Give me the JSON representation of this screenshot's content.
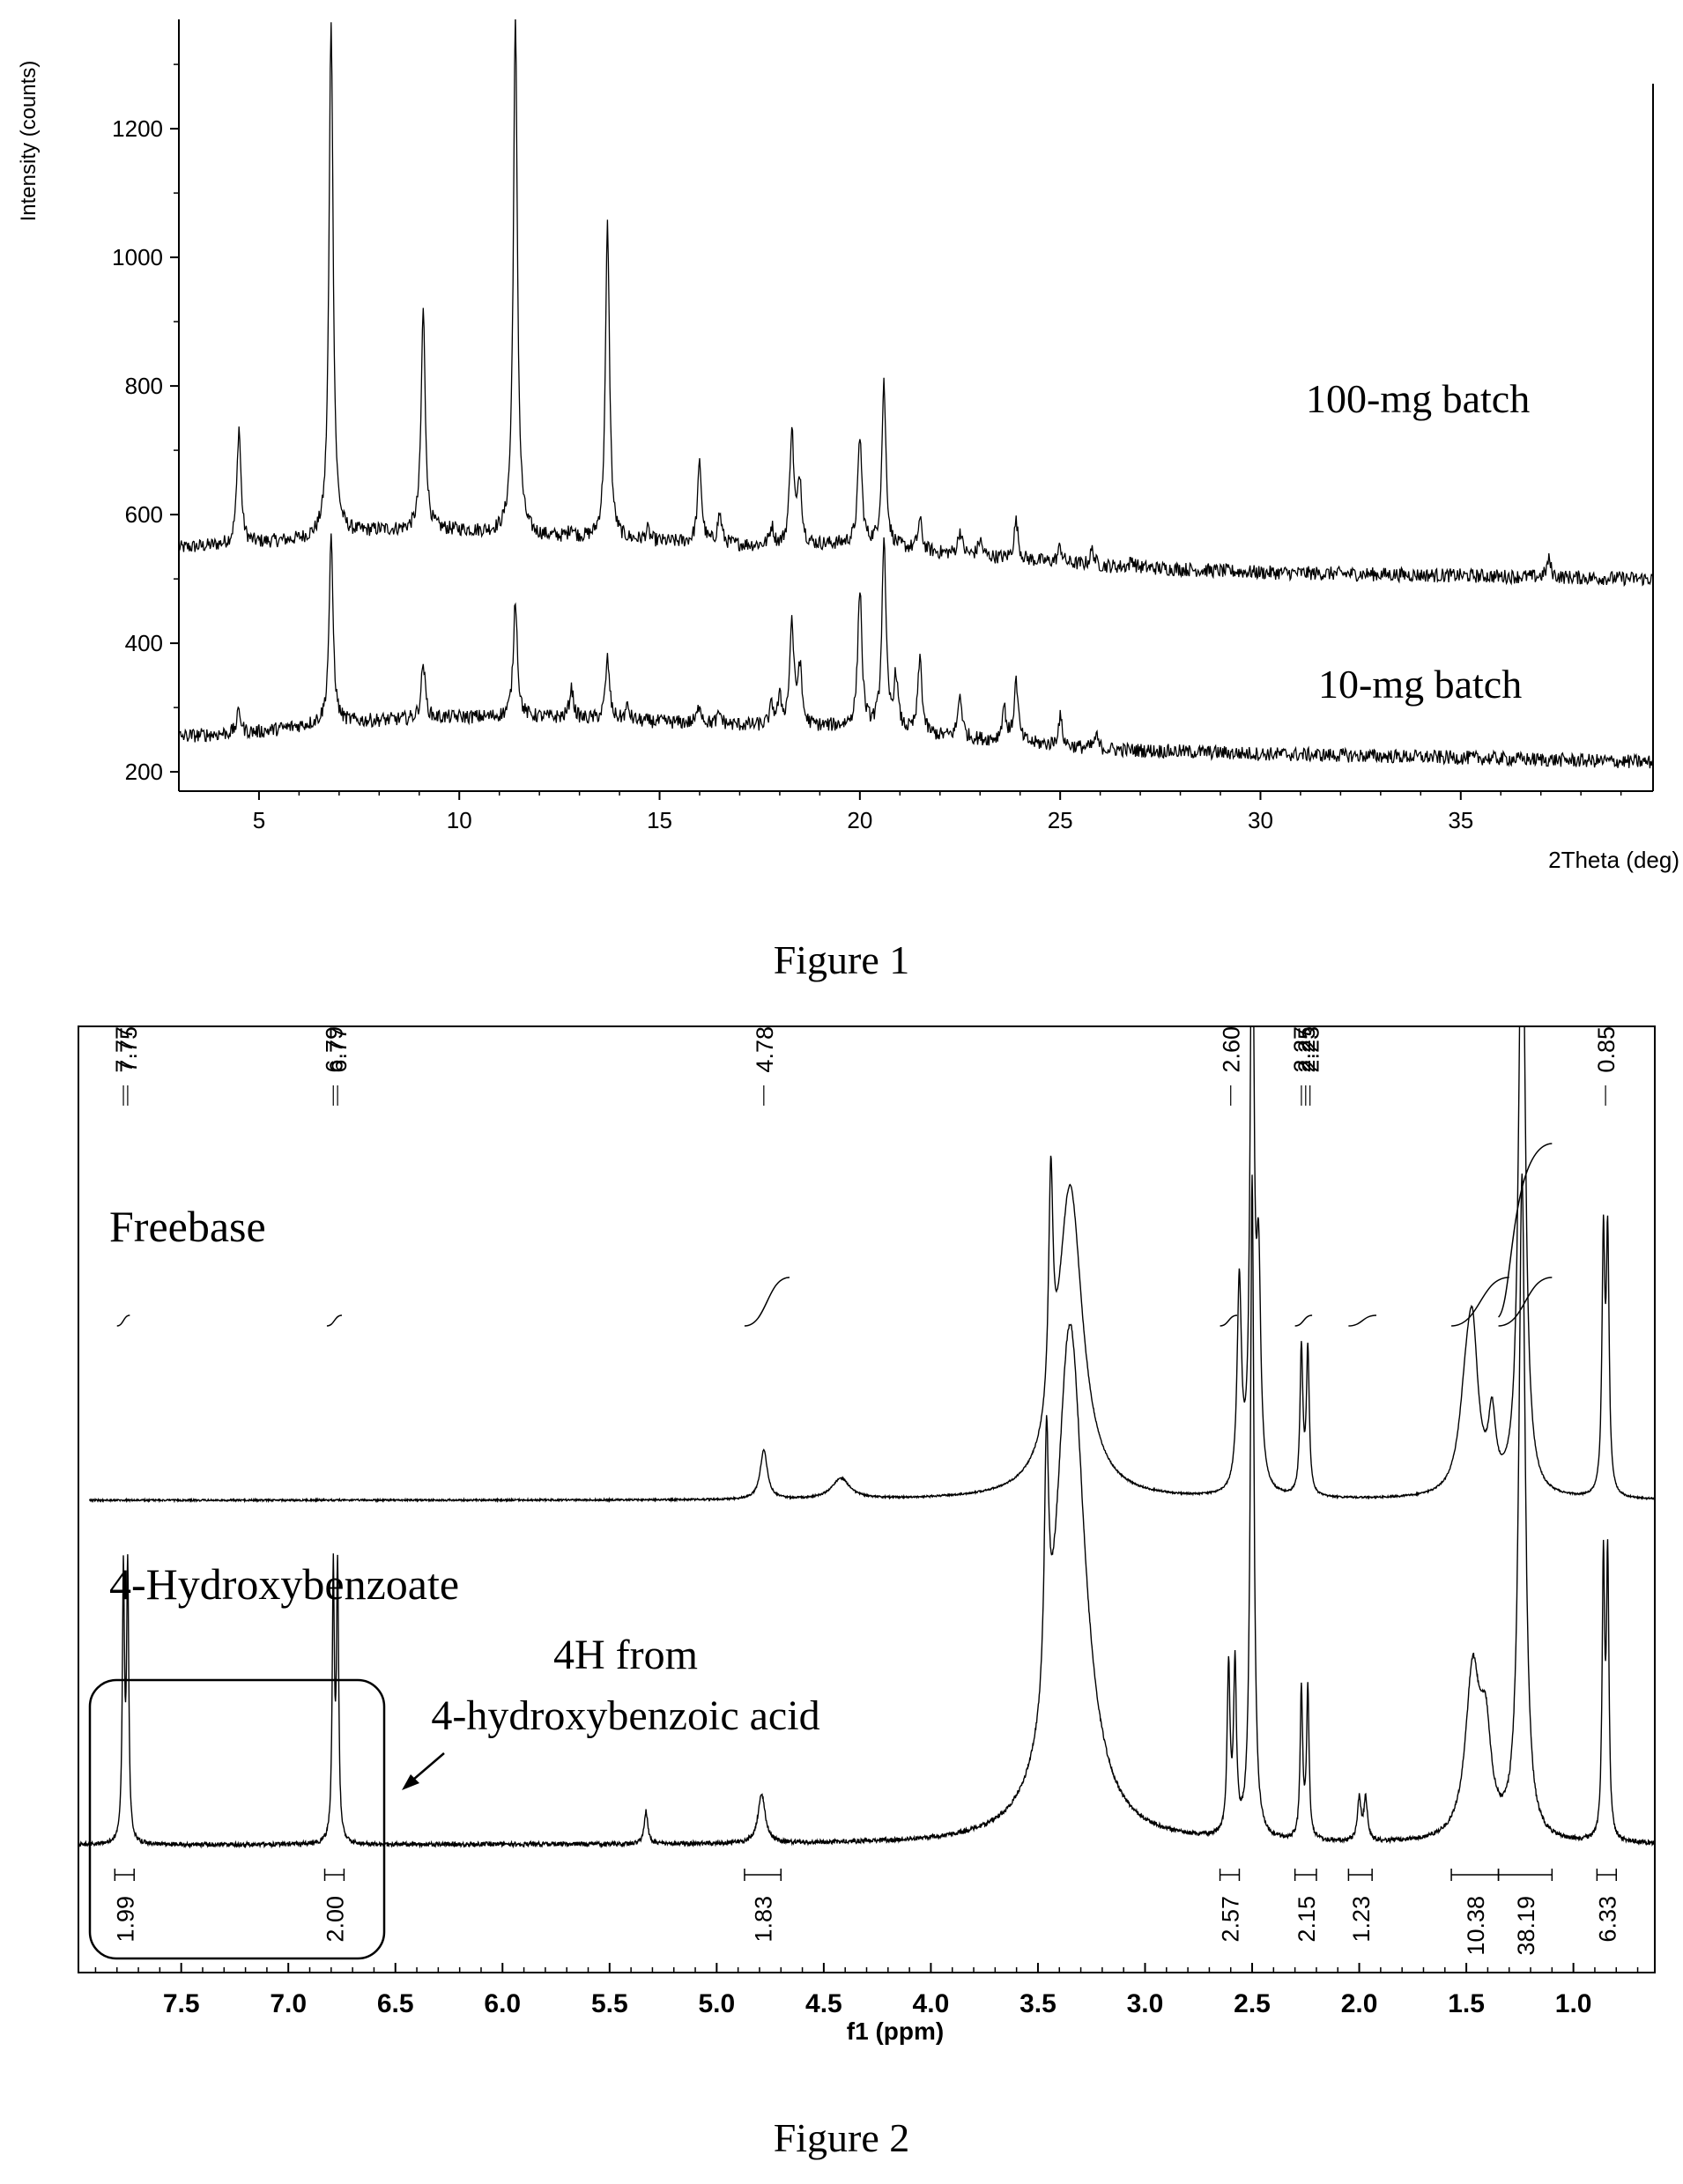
{
  "figures": [
    {
      "caption": "Figure 1"
    },
    {
      "caption": "Figure 2"
    }
  ],
  "chart_data": [
    {
      "type": "line",
      "title": "",
      "xlabel": "2Theta (deg)",
      "ylabel": "Intensity (counts)",
      "xlim": [
        3,
        39.8
      ],
      "ylim": [
        170,
        1370
      ],
      "xticks": [
        5,
        10,
        15,
        20,
        25,
        30,
        35
      ],
      "yticks": [
        200,
        400,
        600,
        800,
        1000,
        1200
      ],
      "grid": false,
      "series": [
        {
          "name": "100-mg batch",
          "baseline": [
            [
              3,
              548
            ],
            [
              6,
              560
            ],
            [
              8,
              575
            ],
            [
              10,
              575
            ],
            [
              12,
              565
            ],
            [
              14,
              560
            ],
            [
              16,
              555
            ],
            [
              18,
              550
            ],
            [
              20,
              555
            ],
            [
              22,
              540
            ],
            [
              24,
              530
            ],
            [
              26,
              520
            ],
            [
              30,
              510
            ],
            [
              35,
              505
            ],
            [
              39.8,
              500
            ]
          ],
          "peaks": [
            [
              4.5,
              735
            ],
            [
              6.8,
              1370
            ],
            [
              9.1,
              920
            ],
            [
              11.4,
              1370
            ],
            [
              12.8,
              580
            ],
            [
              13.7,
              1050
            ],
            [
              14.7,
              575
            ],
            [
              16.0,
              680
            ],
            [
              16.5,
              600
            ],
            [
              17.8,
              580
            ],
            [
              18.3,
              730
            ],
            [
              18.5,
              650
            ],
            [
              20.0,
              720
            ],
            [
              20.6,
              805
            ],
            [
              21.5,
              590
            ],
            [
              22.5,
              575
            ],
            [
              23.0,
              560
            ],
            [
              23.9,
              590
            ],
            [
              25.0,
              550
            ],
            [
              25.8,
              545
            ],
            [
              26.8,
              530
            ],
            [
              37.2,
              530
            ]
          ]
        },
        {
          "name": "10-mg batch",
          "baseline": [
            [
              3,
              255
            ],
            [
              5,
              262
            ],
            [
              6.5,
              275
            ],
            [
              8,
              280
            ],
            [
              10,
              285
            ],
            [
              12,
              285
            ],
            [
              14,
              280
            ],
            [
              16,
              275
            ],
            [
              18,
              270
            ],
            [
              20,
              270
            ],
            [
              22,
              255
            ],
            [
              24,
              245
            ],
            [
              26,
              235
            ],
            [
              30,
              228
            ],
            [
              35,
              222
            ],
            [
              39.8,
              215
            ]
          ],
          "peaks": [
            [
              4.5,
              295
            ],
            [
              6.8,
              560
            ],
            [
              9.1,
              370
            ],
            [
              11.4,
              470
            ],
            [
              12.8,
              330
            ],
            [
              13.7,
              375
            ],
            [
              14.2,
              300
            ],
            [
              16.0,
              305
            ],
            [
              16.5,
              290
            ],
            [
              17.8,
              300
            ],
            [
              18.0,
              310
            ],
            [
              18.3,
              430
            ],
            [
              18.5,
              360
            ],
            [
              20.0,
              485
            ],
            [
              20.6,
              560
            ],
            [
              20.9,
              345
            ],
            [
              21.5,
              375
            ],
            [
              22.5,
              320
            ],
            [
              23.6,
              300
            ],
            [
              23.9,
              340
            ],
            [
              25.0,
              285
            ],
            [
              25.9,
              255
            ]
          ]
        }
      ],
      "annotations": [
        "100-mg batch",
        "10-mg batch"
      ]
    },
    {
      "type": "line",
      "title": "",
      "xlabel": "f1 (ppm)",
      "ylabel": "",
      "xlim": [
        7.98,
        0.62
      ],
      "xticks": [
        7.5,
        7.0,
        6.5,
        6.0,
        5.5,
        5.0,
        4.5,
        4.0,
        3.5,
        3.0,
        2.5,
        2.0,
        1.5,
        1.0
      ],
      "grid": false,
      "peak_labels": [
        "7.77",
        "7.75",
        "6.79",
        "6.77",
        "4.78",
        "2.60",
        "2.27",
        "2.25",
        "2.23",
        "0.85"
      ],
      "series": [
        {
          "name": "Freebase",
          "peaks": [
            [
              4.78,
              0.12,
              0.02
            ],
            [
              4.42,
              0.05,
              0.05
            ],
            [
              3.44,
              0.55,
              0.012
            ],
            [
              3.35,
              0.75,
              0.07
            ],
            [
              2.56,
              0.5,
              0.012
            ],
            [
              2.5,
              1.6,
              0.01
            ],
            [
              2.47,
              0.5,
              0.012
            ],
            [
              2.27,
              0.35,
              0.008
            ],
            [
              2.24,
              0.35,
              0.008
            ],
            [
              1.5,
              0.22,
              0.04
            ],
            [
              1.47,
              0.3,
              0.03
            ],
            [
              1.38,
              0.17,
              0.02
            ],
            [
              1.24,
              1.6,
              0.018
            ],
            [
              0.86,
              0.6,
              0.008
            ],
            [
              0.84,
              0.6,
              0.008
            ]
          ],
          "integral_curves": [
            [
              7.8,
              7.74
            ],
            [
              6.82,
              6.75
            ],
            [
              4.87,
              4.66
            ],
            [
              2.65,
              2.57
            ],
            [
              2.3,
              2.22
            ],
            [
              2.05,
              1.92
            ],
            [
              1.57,
              1.3
            ],
            [
              1.35,
              1.1
            ]
          ]
        },
        {
          "name": "4-Hydroxybenzoate",
          "peaks": [
            [
              7.77,
              0.65,
              0.006
            ],
            [
              7.75,
              0.65,
              0.006
            ],
            [
              6.79,
              0.65,
              0.006
            ],
            [
              6.77,
              0.65,
              0.006
            ],
            [
              5.33,
              0.08,
              0.01
            ],
            [
              4.79,
              0.12,
              0.02
            ],
            [
              3.46,
              0.6,
              0.012
            ],
            [
              3.35,
              1.25,
              0.08
            ],
            [
              2.61,
              0.4,
              0.008
            ],
            [
              2.58,
              0.4,
              0.008
            ],
            [
              2.5,
              1.6,
              0.01
            ],
            [
              2.27,
              0.36,
              0.007
            ],
            [
              2.24,
              0.36,
              0.007
            ],
            [
              2.0,
              0.1,
              0.01
            ],
            [
              1.97,
              0.1,
              0.01
            ],
            [
              1.47,
              0.4,
              0.04
            ],
            [
              1.41,
              0.22,
              0.03
            ],
            [
              1.24,
              1.6,
              0.018
            ],
            [
              0.86,
              0.66,
              0.007
            ],
            [
              0.84,
              0.66,
              0.007
            ]
          ]
        }
      ],
      "integrals": [
        {
          "ppm_from": 7.81,
          "ppm_to": 7.72,
          "value": "1.99"
        },
        {
          "ppm_from": 6.83,
          "ppm_to": 6.74,
          "value": "2.00"
        },
        {
          "ppm_from": 4.87,
          "ppm_to": 4.7,
          "value": "1.83"
        },
        {
          "ppm_from": 2.65,
          "ppm_to": 2.56,
          "value": "2.57"
        },
        {
          "ppm_from": 2.3,
          "ppm_to": 2.2,
          "value": "2.15"
        },
        {
          "ppm_from": 2.05,
          "ppm_to": 1.94,
          "value": "1.23"
        },
        {
          "ppm_from": 1.57,
          "ppm_to": 1.35,
          "value": "10.38"
        },
        {
          "ppm_from": 1.35,
          "ppm_to": 1.1,
          "value": "38.19"
        },
        {
          "ppm_from": 0.89,
          "ppm_to": 0.8,
          "value": "6.33"
        }
      ],
      "annotations": {
        "freebase_label": "Freebase",
        "salt_label": "4-Hydroxybenzoate",
        "note_line1": "4H from",
        "note_line2": "4-hydroxybenzoic acid"
      }
    }
  ]
}
